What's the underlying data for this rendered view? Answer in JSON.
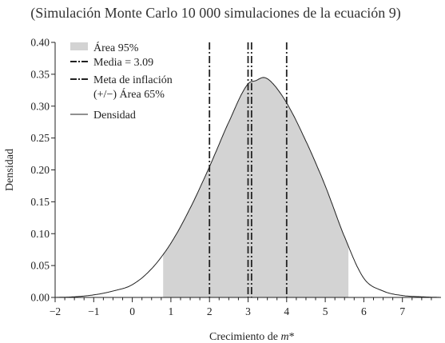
{
  "chart_data": {
    "type": "area",
    "title": "(Simulación Monte Carlo 10 000 simulaciones de la ecuación 9)",
    "xlabel": "Crecimiento de m*",
    "ylabel": "Densidad",
    "xlim": [
      -2,
      8
    ],
    "ylim": [
      0,
      0.4
    ],
    "x_ticks": [
      -2,
      -1,
      0,
      1,
      2,
      3,
      4,
      5,
      6,
      7
    ],
    "x_tick_labels": [
      "−2",
      "−1",
      "0",
      "1",
      "2",
      "3",
      "4",
      "5",
      "6",
      "7"
    ],
    "y_ticks": [
      0.0,
      0.05,
      0.1,
      0.15,
      0.2,
      0.25,
      0.3,
      0.35,
      0.4
    ],
    "y_tick_labels": [
      "0.00",
      "0.05",
      "0.10",
      "0.15",
      "0.20",
      "0.25",
      "0.30",
      "0.35",
      "0.40"
    ],
    "grid": false,
    "legend_position": "top-left",
    "legend": [
      {
        "label": "Área 95%",
        "style": "fill"
      },
      {
        "label": "Media = 3.09",
        "style": "dashdot"
      },
      {
        "label": "Meta de inflación",
        "style": "dashdot"
      },
      {
        "label": "(+/−) Área 65%",
        "style": "none"
      },
      {
        "label": "Densidad",
        "style": "line"
      }
    ],
    "density": {
      "x": [
        -2.0,
        -1.5,
        -1.0,
        -0.5,
        0.0,
        0.5,
        1.0,
        1.5,
        2.0,
        2.5,
        3.0,
        3.2,
        3.4,
        3.6,
        4.0,
        4.5,
        5.0,
        5.5,
        6.0,
        6.5,
        7.0,
        7.5,
        8.0
      ],
      "y": [
        0.0,
        0.001,
        0.004,
        0.01,
        0.02,
        0.045,
        0.085,
        0.14,
        0.205,
        0.275,
        0.335,
        0.34,
        0.345,
        0.338,
        0.305,
        0.245,
        0.175,
        0.095,
        0.03,
        0.01,
        0.003,
        0.001,
        0.0
      ]
    },
    "area_95": [
      0.8,
      5.6
    ],
    "mean": 3.09,
    "inflation_target": 3.0,
    "area_65": [
      2.0,
      4.0
    ],
    "colors": {
      "shade": "#d3d3d3",
      "line": "#222222",
      "text": "#222222"
    }
  }
}
